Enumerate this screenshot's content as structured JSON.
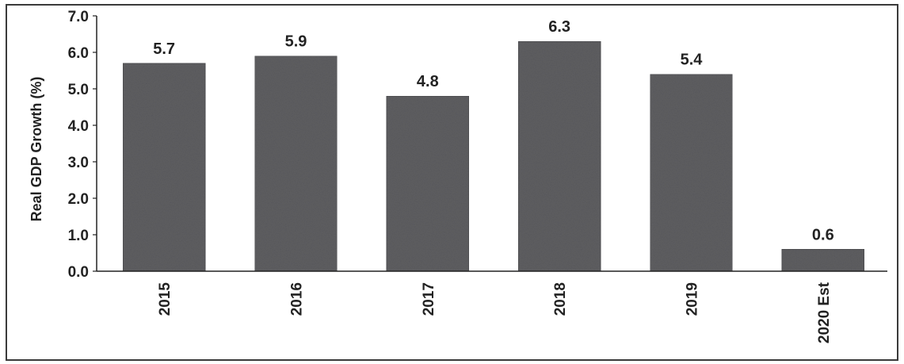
{
  "chart_data": {
    "type": "bar",
    "categories": [
      "2015",
      "2016",
      "2017",
      "2018",
      "2019",
      "2020 Est"
    ],
    "values": [
      5.7,
      5.9,
      4.8,
      6.3,
      5.4,
      0.6
    ],
    "data_labels": [
      "5.7",
      "5.9",
      "4.8",
      "6.3",
      "5.4",
      "0.6"
    ],
    "title": "",
    "xlabel": "",
    "ylabel": "Real GDP Growth (%)",
    "ylim": [
      0,
      7
    ],
    "yticks": [
      "0.0",
      "1.0",
      "2.0",
      "3.0",
      "4.0",
      "5.0",
      "6.0",
      "7.0"
    ],
    "grid": false,
    "legend": "none",
    "colors": {
      "bar": "#5f5f62",
      "bar_dark": "#4d4d50",
      "axis": "#222222",
      "frame": "#3a3a3a"
    }
  }
}
